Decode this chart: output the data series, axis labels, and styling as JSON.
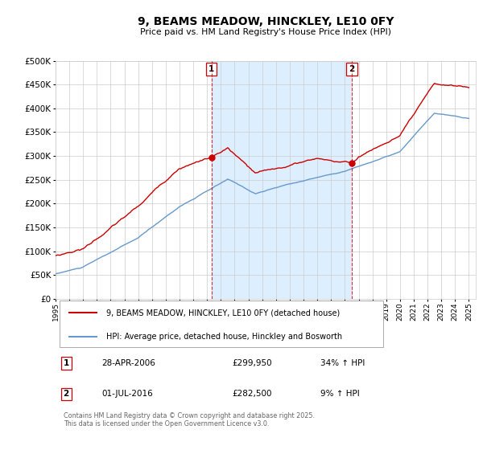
{
  "title": "9, BEAMS MEADOW, HINCKLEY, LE10 0FY",
  "subtitle": "Price paid vs. HM Land Registry's House Price Index (HPI)",
  "legend1": "9, BEAMS MEADOW, HINCKLEY, LE10 0FY (detached house)",
  "legend2": "HPI: Average price, detached house, Hinckley and Bosworth",
  "annotation1_date": "28-APR-2006",
  "annotation1_price": "£299,950",
  "annotation1_hpi": "34% ↑ HPI",
  "annotation2_date": "01-JUL-2016",
  "annotation2_price": "£282,500",
  "annotation2_hpi": "9% ↑ HPI",
  "footer": "Contains HM Land Registry data © Crown copyright and database right 2025.\nThis data is licensed under the Open Government Licence v3.0.",
  "red_color": "#cc0000",
  "blue_color": "#6699cc",
  "shade_color": "#ddeeff",
  "background_color": "#ffffff",
  "grid_color": "#cccccc",
  "ylim": [
    0,
    500000
  ],
  "yticks": [
    0,
    50000,
    100000,
    150000,
    200000,
    250000,
    300000,
    350000,
    400000,
    450000,
    500000
  ],
  "year_start": 1995,
  "year_end": 2025,
  "purchase1_year": 2006.32,
  "purchase2_year": 2016.5
}
